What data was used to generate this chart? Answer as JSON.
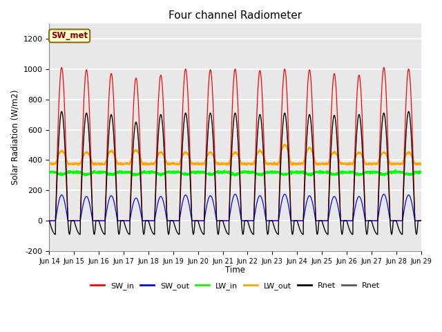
{
  "title": "Four channel Radiometer",
  "xlabel": "Time",
  "ylabel": "Solar Radiation (W/m2)",
  "ylim": [
    -200,
    1300
  ],
  "yticks": [
    -200,
    0,
    200,
    400,
    600,
    800,
    1000,
    1200
  ],
  "xtick_labels": [
    "Jun 14",
    "Jun 15",
    "Jun 16",
    "Jun 17",
    "Jun 18",
    "Jun 19",
    "Jun 20",
    "Jun 21",
    "Jun 22",
    "Jun 23",
    "Jun 24",
    "Jun 25",
    "Jun 26",
    "Jun 27",
    "Jun 28",
    "Jun 29"
  ],
  "annotation_text": "SW_met",
  "annotation_color": "#8B0000",
  "annotation_bg": "#FFFFCC",
  "annotation_border": "#8B6914",
  "plot_bg": "#E8E8E8",
  "fig_bg": "#FFFFFF",
  "grid_color": "#FFFFFF",
  "day_peaks_sw": [
    1010,
    995,
    970,
    940,
    960,
    1000,
    995,
    1000,
    990,
    1000,
    995,
    970,
    960,
    1010,
    1000
  ],
  "day_peaks_swout": [
    170,
    160,
    165,
    150,
    160,
    170,
    165,
    175,
    165,
    175,
    165,
    160,
    160,
    175,
    170
  ],
  "day_peaks_rnet": [
    720,
    710,
    700,
    650,
    700,
    710,
    710,
    710,
    700,
    710,
    700,
    695,
    700,
    710,
    720
  ],
  "day_peaks_lwout": [
    460,
    450,
    460,
    465,
    450,
    450,
    450,
    450,
    460,
    500,
    480,
    450,
    450,
    450,
    450
  ],
  "lw_in_base": 320,
  "lw_in_amp": 15,
  "lw_out_base": 375
}
